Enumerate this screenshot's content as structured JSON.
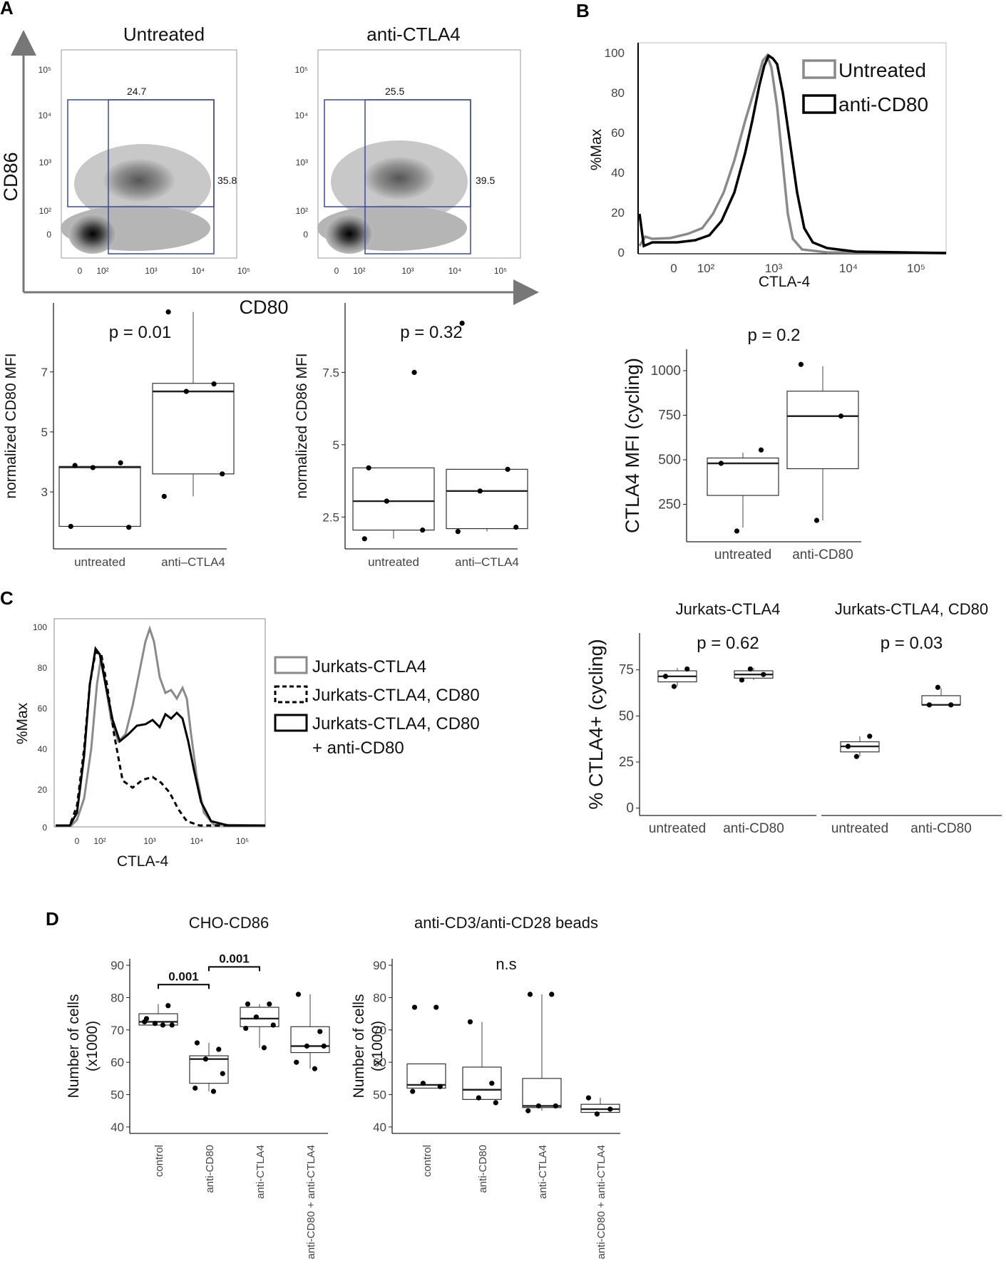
{
  "figure": {
    "panel_letters": [
      "A",
      "B",
      "C",
      "D"
    ]
  },
  "panel_a": {
    "axis_x": "CD80",
    "axis_y": "CD86",
    "density_plots": [
      {
        "title": "Untreated",
        "gate_cd86": "24.7",
        "gate_double": "35.8"
      },
      {
        "title": "anti-CTLA4",
        "gate_cd86": "25.5",
        "gate_double": "39.5"
      }
    ],
    "log_ticks_x": [
      "0",
      "10²",
      "10³",
      "10⁴",
      "10⁵"
    ],
    "log_ticks_y": [
      "10⁵",
      "10⁴",
      "10³",
      "10²",
      "0"
    ]
  },
  "panel_b": {
    "histogram": {
      "xlabel": "CTLA-4",
      "ylabel": "%Max",
      "y_ticks": [
        "100",
        "80",
        "60",
        "40",
        "20",
        "0"
      ],
      "x_ticks": [
        "0",
        "10²",
        "10³",
        "10⁴",
        "10⁵"
      ],
      "legend": [
        "Untreated",
        "anti-CD80"
      ]
    }
  },
  "panel_c": {
    "histogram": {
      "xlabel": "CTLA-4",
      "ylabel": "%Max",
      "y_ticks": [
        "100",
        "80",
        "60",
        "40",
        "20",
        "0"
      ],
      "x_ticks": [
        "0",
        "10²",
        "10³",
        "10⁴",
        "10⁵"
      ],
      "legend": [
        "Jurkats-CTLA4",
        "Jurkats-CTLA4, CD80",
        "Jurkats-CTLA4, CD80",
        "+ anti-CD80"
      ]
    }
  },
  "chart_data": [
    {
      "id": "a_cd80",
      "type": "box",
      "title": "p = 0.01",
      "ylabel": "normalized CD80 MFI",
      "ylim": [
        1.1,
        9.3
      ],
      "yticks": [
        3,
        5,
        7
      ],
      "categories": [
        "untreated",
        "anti–CTLA4"
      ],
      "boxes": [
        {
          "q1": 1.85,
          "median": 3.82,
          "q3": 3.85,
          "whisker_low": 1.85,
          "whisker_high": 3.85,
          "points": [
            3.88,
            3.97,
            3.81,
            1.82,
            1.85
          ]
        },
        {
          "q1": 3.6,
          "median": 6.35,
          "q3": 6.62,
          "whisker_low": 2.85,
          "whisker_high": 9.0,
          "points": [
            9.0,
            6.6,
            6.35,
            3.6,
            2.85
          ]
        }
      ]
    },
    {
      "id": "a_cd86",
      "type": "box",
      "title": "p = 0.32",
      "ylabel": "normalized CD86 MFI",
      "ylim": [
        1.4,
        9.9
      ],
      "yticks": [
        2.5,
        5.0,
        7.5
      ],
      "categories": [
        "untreated",
        "anti–CTLA4"
      ],
      "boxes": [
        {
          "q1": 2.05,
          "median": 3.05,
          "q3": 4.2,
          "whisker_low": 1.75,
          "whisker_high": 4.2,
          "points": [
            4.2,
            7.5,
            3.05,
            2.05,
            1.75
          ]
        },
        {
          "q1": 2.1,
          "median": 3.4,
          "q3": 4.15,
          "whisker_low": 2.0,
          "whisker_high": 4.15,
          "points": [
            9.2,
            4.15,
            3.4,
            2.15,
            2.0
          ]
        }
      ]
    },
    {
      "id": "b_ctla4",
      "type": "box",
      "title": "p = 0.2",
      "ylabel": "CTLA4 MFI (cycling)",
      "ylim": [
        40,
        1120
      ],
      "yticks": [
        250,
        500,
        750,
        1000
      ],
      "categories": [
        "untreated",
        "anti-CD80"
      ],
      "boxes": [
        {
          "q1": 300,
          "median": 480,
          "q3": 510,
          "whisker_low": 120,
          "whisker_high": 540,
          "points": [
            480,
            555,
            100
          ]
        },
        {
          "q1": 450,
          "median": 745,
          "q3": 885,
          "whisker_low": 160,
          "whisker_high": 1025,
          "points": [
            1035,
            745,
            160
          ]
        }
      ]
    },
    {
      "id": "c_jurkat",
      "type": "box",
      "title": "Jurkats-CTLA4",
      "ylabel": "% CTLA4+ (cycling)",
      "ylim": [
        -4,
        95
      ],
      "yticks": [
        0,
        25,
        50,
        75
      ],
      "categories": [
        "untreated",
        "anti-CD80"
      ],
      "annotation": "p = 0.62",
      "boxes": [
        {
          "q1": 68.5,
          "median": 71.5,
          "q3": 74.5,
          "whisker_low": 66,
          "whisker_high": 76,
          "points": [
            71.5,
            75.5,
            66
          ]
        },
        {
          "q1": 70.5,
          "median": 72.5,
          "q3": 74.5,
          "whisker_low": 69.5,
          "whisker_high": 76,
          "points": [
            69.5,
            72.5,
            75.5
          ]
        }
      ]
    },
    {
      "id": "c_jurkat_cd80",
      "type": "box",
      "title": "Jurkats-CTLA4, CD80",
      "ylabel": "",
      "ylim": [
        -4,
        95
      ],
      "yticks": [
        0,
        25,
        50,
        75
      ],
      "categories": [
        "untreated",
        "anti-CD80"
      ],
      "annotation": "p = 0.03",
      "boxes": [
        {
          "q1": 30.5,
          "median": 33.5,
          "q3": 36,
          "whisker_low": 28,
          "whisker_high": 39,
          "points": [
            33.5,
            39,
            28
          ]
        },
        {
          "q1": 56,
          "median": 56,
          "q3": 61,
          "whisker_low": 56,
          "whisker_high": 65,
          "points": [
            56,
            56,
            65.5
          ]
        }
      ]
    },
    {
      "id": "d_cho",
      "type": "box",
      "title": "CHO-CD86",
      "ylabel": "Number of cells (x1000)",
      "ylim": [
        38,
        92
      ],
      "yticks": [
        40,
        50,
        60,
        70,
        80,
        90
      ],
      "categories": [
        "control",
        "anti-CD80",
        "anti-CTLA4",
        "anti-CD80 + anti-CTLA4"
      ],
      "brackets": [
        {
          "from": 0,
          "to": 1,
          "y": 84,
          "label": "0.001"
        },
        {
          "from": 1,
          "to": 2,
          "y": 89.5,
          "label": "0.001"
        }
      ],
      "boxes": [
        {
          "q1": 71.5,
          "median": 72.5,
          "q3": 75.0,
          "whisker_low": 71.5,
          "whisker_high": 78,
          "points": [
            73.5,
            77.5,
            72,
            71.5,
            72.5,
            71.5
          ]
        },
        {
          "q1": 53.5,
          "median": 61.0,
          "q3": 62.0,
          "whisker_low": 51,
          "whisker_high": 66,
          "points": [
            66,
            64,
            61,
            56.5,
            52,
            51
          ]
        },
        {
          "q1": 71.0,
          "median": 73.5,
          "q3": 77.0,
          "whisker_low": 64.5,
          "whisker_high": 78,
          "points": [
            78,
            78,
            74,
            71.5,
            70.5,
            64.5
          ]
        },
        {
          "q1": 63.0,
          "median": 65.0,
          "q3": 71.0,
          "whisker_low": 58,
          "whisker_high": 81,
          "points": [
            81,
            69.5,
            65,
            65,
            60,
            58
          ]
        }
      ]
    },
    {
      "id": "d_beads",
      "type": "box",
      "title": "anti-CD3/anti-CD28 beads",
      "ylabel": "Number of cells (x1000)",
      "ylim": [
        38,
        92
      ],
      "yticks": [
        40,
        50,
        60,
        70,
        80,
        90
      ],
      "categories": [
        "control",
        "anti-CD80",
        "anti-CTLA4",
        "anti-CD80 + anti-CTLA4"
      ],
      "annotation": "n.s",
      "boxes": [
        {
          "q1": 52.0,
          "median": 53.0,
          "q3": 59.5,
          "whisker_low": 52,
          "whisker_high": 59.5,
          "points": [
            77,
            77,
            53.5,
            52.5,
            51
          ]
        },
        {
          "q1": 48.5,
          "median": 51.5,
          "q3": 58.5,
          "whisker_low": 48.5,
          "whisker_high": 72.5,
          "points": [
            72.5,
            53.5,
            49,
            47.5
          ]
        },
        {
          "q1": 46.0,
          "median": 46.5,
          "q3": 55.0,
          "whisker_low": 45,
          "whisker_high": 81,
          "points": [
            81,
            81,
            46.5,
            46.5,
            45
          ]
        },
        {
          "q1": 44.5,
          "median": 45.5,
          "q3": 47.0,
          "whisker_low": 44.5,
          "whisker_high": 49,
          "points": [
            49,
            45.5,
            44
          ]
        }
      ]
    }
  ]
}
